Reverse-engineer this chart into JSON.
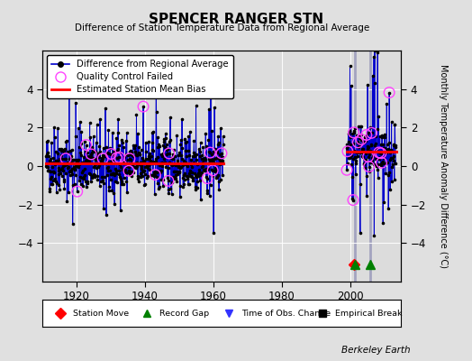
{
  "title": "SPENCER RANGER STN",
  "subtitle": "Difference of Station Temperature Data from Regional Average",
  "ylabel": "Monthly Temperature Anomaly Difference (°C)",
  "credit": "Berkeley Earth",
  "ylim": [
    -6,
    6
  ],
  "xlim": [
    1910,
    2015
  ],
  "xticks": [
    1920,
    1940,
    1960,
    1980,
    2000
  ],
  "yticks": [
    -4,
    -2,
    0,
    2,
    4
  ],
  "background_color": "#e0e0e0",
  "plot_bg_color": "#dcdcdc",
  "main_line_color": "#0000cc",
  "main_dot_color": "#000000",
  "bias_line_color": "#ff0000",
  "qc_marker_color": "#ff44ff",
  "vertical_line_color": "#9999bb",
  "bias_value_early": 0.12,
  "bias_value_late": 0.75,
  "data_start": 1911.0,
  "data_end_early": 1963.0,
  "data_start_late": 1999.0,
  "data_end_late": 2013.5,
  "vertical_line1": 2001.5,
  "vertical_line2": 2006.0,
  "station_move_x": 2001.2,
  "record_gap1_x": 2001.5,
  "record_gap2_x": 2006.0,
  "seed": 42
}
